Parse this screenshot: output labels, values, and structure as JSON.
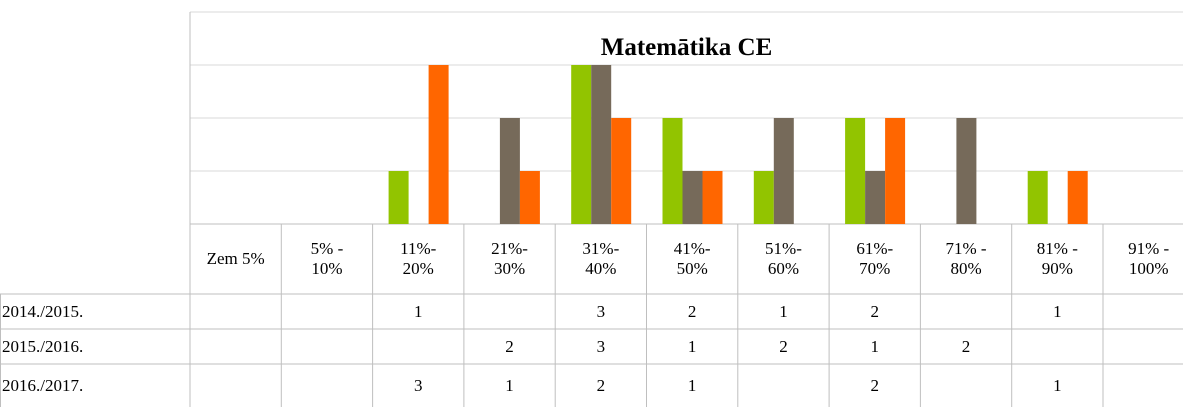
{
  "chart_data": {
    "type": "bar",
    "title": "Matemātika CE",
    "categories": [
      "Zem 5%",
      "5% -\n10%",
      "11%-\n20%",
      "21%-\n30%",
      "31%-\n40%",
      "41%-\n50%",
      "51%-\n60%",
      "61%-\n70%",
      "71% -\n80%",
      "81% -\n90%",
      "91% -\n100%"
    ],
    "series": [
      {
        "name": "2014./2015.",
        "color": "#92c400",
        "values": [
          null,
          null,
          1,
          null,
          3,
          2,
          1,
          2,
          null,
          1,
          null
        ]
      },
      {
        "name": "2015./2016.",
        "color": "#766a5a",
        "values": [
          null,
          null,
          null,
          2,
          3,
          1,
          2,
          1,
          2,
          null,
          null
        ]
      },
      {
        "name": "2016./2017.",
        "color": "#ff6600",
        "values": [
          null,
          null,
          3,
          1,
          2,
          1,
          null,
          2,
          null,
          1,
          null
        ]
      }
    ],
    "ylim": [
      0,
      4
    ],
    "yticks": [
      0,
      1,
      2,
      3,
      4
    ],
    "grid": true
  }
}
